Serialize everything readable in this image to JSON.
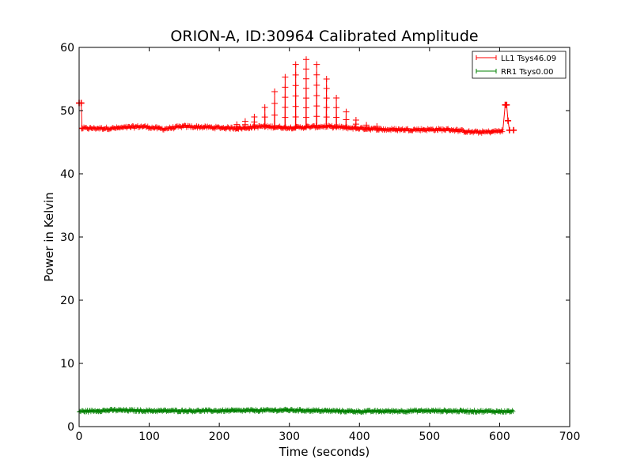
{
  "chart_data": {
    "type": "line",
    "title": "ORION-A, ID:30964 Calibrated Amplitude",
    "xlabel": "Time (seconds)",
    "ylabel": "Power in Kelvin",
    "xlim": [
      0,
      700
    ],
    "ylim": [
      0,
      60
    ],
    "xticks": [
      "0",
      "100",
      "200",
      "300",
      "400",
      "500",
      "600",
      "700"
    ],
    "yticks": [
      "0",
      "10",
      "20",
      "30",
      "40",
      "50",
      "60"
    ],
    "grid": false,
    "legend_position": "top-right",
    "marker": "+",
    "series": [
      {
        "name": "LL1 Tsys46.09",
        "color": "#ff0000",
        "start": [
          [
            0,
            51.2
          ],
          [
            3,
            51.2
          ],
          [
            4,
            47.2
          ]
        ],
        "baseline": [
          [
            5,
            47.2
          ],
          [
            50,
            47.2
          ],
          [
            90,
            47.5
          ],
          [
            120,
            47.1
          ],
          [
            150,
            47.5
          ],
          [
            200,
            47.3
          ],
          [
            230,
            47.2
          ],
          [
            260,
            47.5
          ],
          [
            300,
            47.3
          ],
          [
            350,
            47.5
          ],
          [
            400,
            47.2
          ],
          [
            440,
            47.0
          ],
          [
            500,
            47.0
          ],
          [
            530,
            47.0
          ],
          [
            560,
            46.6
          ],
          [
            580,
            46.6
          ],
          [
            605,
            46.8
          ]
        ],
        "spikes": [
          [
            225,
            47.8
          ],
          [
            237,
            48.3
          ],
          [
            250,
            49.0
          ],
          [
            265,
            50.5
          ],
          [
            279,
            53.0
          ],
          [
            294,
            55.3
          ],
          [
            309,
            57.3
          ],
          [
            324,
            58.1
          ],
          [
            339,
            57.3
          ],
          [
            353,
            55.0
          ],
          [
            367,
            52.0
          ],
          [
            381,
            49.8
          ],
          [
            395,
            48.5
          ],
          [
            410,
            47.7
          ],
          [
            425,
            47.5
          ]
        ],
        "end": [
          [
            608,
            50.9
          ],
          [
            610,
            50.9
          ],
          [
            612,
            48.4
          ],
          [
            614,
            46.9
          ],
          [
            620,
            46.9
          ]
        ]
      },
      {
        "name": "RR1 Tsys0.00",
        "color": "#008000",
        "baseline": [
          [
            0,
            2.4
          ],
          [
            50,
            2.6
          ],
          [
            100,
            2.5
          ],
          [
            200,
            2.5
          ],
          [
            300,
            2.6
          ],
          [
            400,
            2.4
          ],
          [
            500,
            2.5
          ],
          [
            600,
            2.4
          ],
          [
            620,
            2.4
          ]
        ]
      }
    ]
  }
}
